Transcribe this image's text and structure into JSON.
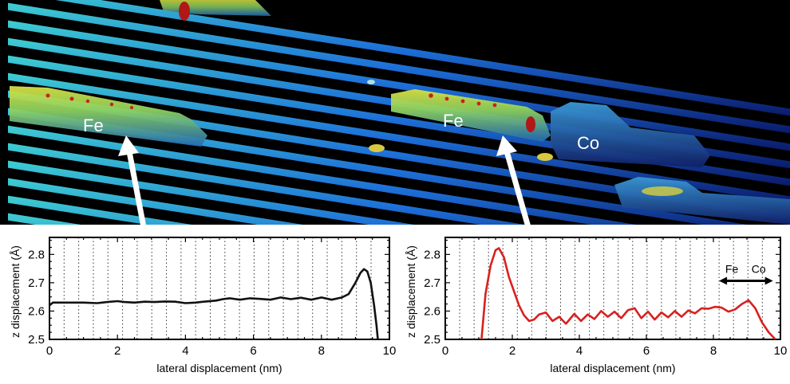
{
  "image_labels": {
    "fe_left": "Fe",
    "fe_right": "Fe",
    "co": "Co"
  },
  "colors": {
    "left_line": "#111111",
    "right_line": "#d92020",
    "surface_bg": "#000000",
    "stripe_color": "#22b8c8",
    "stripe_dark": "#1a3fa0",
    "hot": "#e8d832",
    "red": "#c82020"
  },
  "chart_data": [
    {
      "type": "line",
      "title": "",
      "xlabel": "lateral displacement (nm)",
      "ylabel": "z displacement (Å)",
      "xlim": [
        0,
        10
      ],
      "ylim": [
        2.5,
        2.86
      ],
      "xticks": [
        0,
        2,
        4,
        6,
        8,
        10
      ],
      "xtick_labels": [
        "0",
        "2",
        "4",
        "6",
        "8",
        "10"
      ],
      "yticks": [
        2.5,
        2.6,
        2.7,
        2.8
      ],
      "ytick_labels": [
        "2.5",
        "2.6",
        "2.7",
        "2.8"
      ],
      "grid_x": [
        0.43,
        0.86,
        1.29,
        1.72,
        2.15,
        2.58,
        3.01,
        3.44,
        3.87,
        4.3,
        4.73,
        5.16,
        5.59,
        6.02,
        6.45,
        6.88,
        7.31,
        7.74,
        8.17,
        8.6,
        9.03,
        9.46
      ],
      "series": [
        {
          "x": [
            0,
            0.1,
            0.3,
            0.6,
            1,
            1.4,
            1.7,
            2,
            2.2,
            2.5,
            2.8,
            3.1,
            3.4,
            3.7,
            4,
            4.3,
            4.6,
            4.9,
            5.1,
            5.3,
            5.6,
            5.9,
            6.2,
            6.5,
            6.8,
            7.1,
            7.4,
            7.7,
            8,
            8.3,
            8.6,
            8.8,
            9,
            9.15,
            9.25,
            9.35,
            9.45,
            9.55,
            9.62,
            9.66
          ],
          "y": [
            2.62,
            2.63,
            2.63,
            2.63,
            2.63,
            2.628,
            2.632,
            2.635,
            2.632,
            2.63,
            2.633,
            2.632,
            2.634,
            2.633,
            2.628,
            2.63,
            2.634,
            2.637,
            2.642,
            2.645,
            2.64,
            2.645,
            2.643,
            2.64,
            2.648,
            2.642,
            2.647,
            2.64,
            2.648,
            2.64,
            2.648,
            2.66,
            2.7,
            2.735,
            2.748,
            2.74,
            2.7,
            2.62,
            2.55,
            2.5
          ]
        }
      ]
    },
    {
      "type": "line",
      "title": "",
      "xlabel": "lateral displacement (nm)",
      "ylabel": "z displacement (Å)",
      "xlim": [
        0,
        10
      ],
      "ylim": [
        2.5,
        2.86
      ],
      "xticks": [
        0,
        2,
        4,
        6,
        8,
        10
      ],
      "xtick_labels": [
        "0",
        "2",
        "4",
        "6",
        "8",
        "10"
      ],
      "yticks": [
        2.5,
        2.6,
        2.7,
        2.8
      ],
      "ytick_labels": [
        "2.5",
        "2.6",
        "2.7",
        "2.8"
      ],
      "grid_x": [
        0.43,
        0.86,
        1.29,
        1.72,
        2.15,
        2.58,
        3.01,
        3.44,
        3.87,
        4.3,
        4.73,
        5.16,
        5.59,
        6.02,
        6.45,
        6.88,
        7.31,
        7.74,
        8.17,
        8.6,
        9.03,
        9.46
      ],
      "annotations": [
        {
          "text": "Fe",
          "x": 8.55,
          "y": 2.735
        },
        {
          "text": "Co",
          "x": 9.35,
          "y": 2.735
        }
      ],
      "series": [
        {
          "x": [
            1.08,
            1.2,
            1.35,
            1.5,
            1.6,
            1.75,
            1.9,
            2.05,
            2.2,
            2.35,
            2.5,
            2.65,
            2.8,
            3,
            3.2,
            3.4,
            3.6,
            3.85,
            4.05,
            4.25,
            4.45,
            4.65,
            4.85,
            5.05,
            5.25,
            5.45,
            5.65,
            5.85,
            6.05,
            6.25,
            6.45,
            6.65,
            6.85,
            7.05,
            7.25,
            7.45,
            7.65,
            7.85,
            8.05,
            8.25,
            8.45,
            8.65,
            8.85,
            9.05,
            9.25,
            9.45,
            9.65,
            9.85
          ],
          "y": [
            2.5,
            2.66,
            2.76,
            2.815,
            2.822,
            2.79,
            2.72,
            2.67,
            2.62,
            2.585,
            2.565,
            2.57,
            2.588,
            2.595,
            2.565,
            2.58,
            2.555,
            2.59,
            2.565,
            2.588,
            2.572,
            2.6,
            2.58,
            2.598,
            2.575,
            2.603,
            2.61,
            2.575,
            2.598,
            2.57,
            2.595,
            2.578,
            2.6,
            2.58,
            2.602,
            2.592,
            2.61,
            2.608,
            2.615,
            2.612,
            2.598,
            2.606,
            2.625,
            2.638,
            2.61,
            2.56,
            2.525,
            2.5
          ]
        }
      ]
    }
  ]
}
